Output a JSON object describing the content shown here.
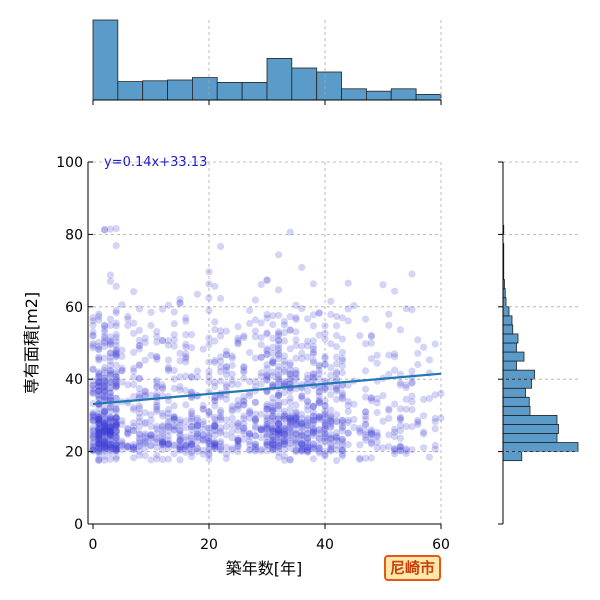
{
  "chart_data": {
    "type": "scatter",
    "xlabel": "築年数[年]",
    "ylabel": "専有面積[m2]",
    "xlim": [
      0,
      60
    ],
    "ylim": [
      0,
      100
    ],
    "xticks": [
      "0",
      "20",
      "40",
      "60"
    ],
    "yticks": [
      "0",
      "20",
      "40",
      "60",
      "80",
      "100"
    ],
    "grid": true,
    "regression": {
      "label": "y=0.14x+33.13",
      "slope": 0.14,
      "intercept": 33.13
    },
    "top_histogram": {
      "bin_edges": [
        0,
        4.28,
        8.57,
        12.85,
        17.14,
        21.42,
        25.71,
        30.0,
        34.28,
        38.57,
        42.85,
        47.14,
        51.42,
        55.71,
        60.0
      ],
      "counts": [
        100,
        23,
        24,
        25,
        28,
        22,
        22,
        52,
        40,
        35,
        14,
        11,
        14,
        7
      ]
    },
    "right_histogram": {
      "bin_edges": [
        20,
        22.5,
        25,
        27.5,
        30,
        32.5,
        35,
        37.5,
        40,
        42.5,
        45,
        47.5,
        50,
        52.5,
        55,
        57.5,
        60,
        62.5,
        65,
        67.5,
        70,
        72.5,
        75,
        77.5,
        80,
        82.5,
        85,
        87.5,
        90,
        92.5,
        95
      ],
      "counts": [
        100,
        72,
        74,
        72,
        36,
        35,
        30,
        38,
        42,
        18,
        28,
        18,
        20,
        13,
        12,
        8,
        4,
        3,
        2,
        1,
        1,
        1,
        1,
        0,
        1,
        0,
        0,
        0,
        0,
        0
      ],
      "low_bin": {
        "edges": [
          17.5,
          20
        ],
        "count": 25
      }
    },
    "point_color": "#3b3bd6",
    "line_color": "#1f77b4",
    "hist_color": "#5b9bc9"
  },
  "badge": {
    "label": "尼崎市"
  }
}
